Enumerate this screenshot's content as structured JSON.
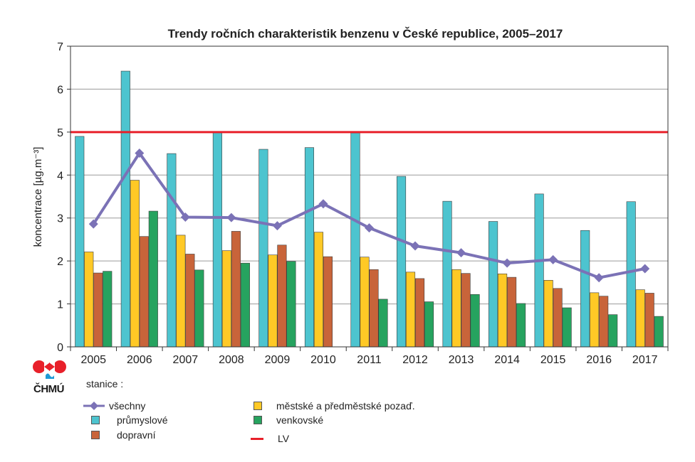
{
  "chart_data": {
    "type": "bar",
    "title": "Trendy ročních charakteristik benzenu v České republice, 2005–2017",
    "ylabel": "koncentrace [µg.m⁻³]",
    "xlabel": "",
    "ylim": [
      0,
      7
    ],
    "yticks": [
      "0",
      "1",
      "2",
      "3",
      "4",
      "5",
      "6",
      "7"
    ],
    "grid": true,
    "categories": [
      "2005",
      "2006",
      "2007",
      "2008",
      "2009",
      "2010",
      "2011",
      "2012",
      "2013",
      "2014",
      "2015",
      "2016",
      "2017"
    ],
    "series": [
      {
        "name": "průmyslové",
        "kind": "bar",
        "color": "#4dc4cf",
        "values": [
          4.9,
          6.42,
          4.5,
          5.0,
          4.6,
          4.64,
          4.98,
          3.97,
          3.39,
          2.92,
          3.56,
          2.71,
          3.38
        ]
      },
      {
        "name": "městské a předměstské pozaď.",
        "kind": "bar",
        "color": "#ffc926",
        "values": [
          2.21,
          3.88,
          2.6,
          2.24,
          2.14,
          2.67,
          2.09,
          1.74,
          1.8,
          1.7,
          1.55,
          1.26,
          1.33
        ]
      },
      {
        "name": "dopravní",
        "kind": "bar",
        "color": "#c8643a",
        "values": [
          1.72,
          2.57,
          2.16,
          2.69,
          2.37,
          2.1,
          1.8,
          1.59,
          1.71,
          1.62,
          1.36,
          1.18,
          1.25
        ]
      },
      {
        "name": "venkovské",
        "kind": "bar",
        "color": "#26a35f",
        "values": [
          1.76,
          3.16,
          1.79,
          1.95,
          1.99,
          null,
          1.11,
          1.05,
          1.22,
          1.01,
          0.91,
          0.75,
          0.71
        ]
      },
      {
        "name": "všechny",
        "kind": "line",
        "color": "#7b72b6",
        "values": [
          2.86,
          4.51,
          3.02,
          3.01,
          2.82,
          3.33,
          2.77,
          2.35,
          2.19,
          1.95,
          2.03,
          1.61,
          1.82
        ]
      }
    ],
    "reference_line": {
      "name": "LV",
      "value": 5,
      "color": "#e8202a"
    },
    "legend_position": "bottom"
  },
  "legend": {
    "heading": "stanice :",
    "items": {
      "vsechny": "všechny",
      "prumyslove": "průmyslové",
      "dopravni": "dopravní",
      "mestske": "městské a předměstské pozaď.",
      "venkovske": "venkovské",
      "lv": "LV"
    }
  },
  "logo": {
    "text": "ČHMÚ",
    "color_red": "#e8202a",
    "color_blue": "#1e9ad6"
  }
}
